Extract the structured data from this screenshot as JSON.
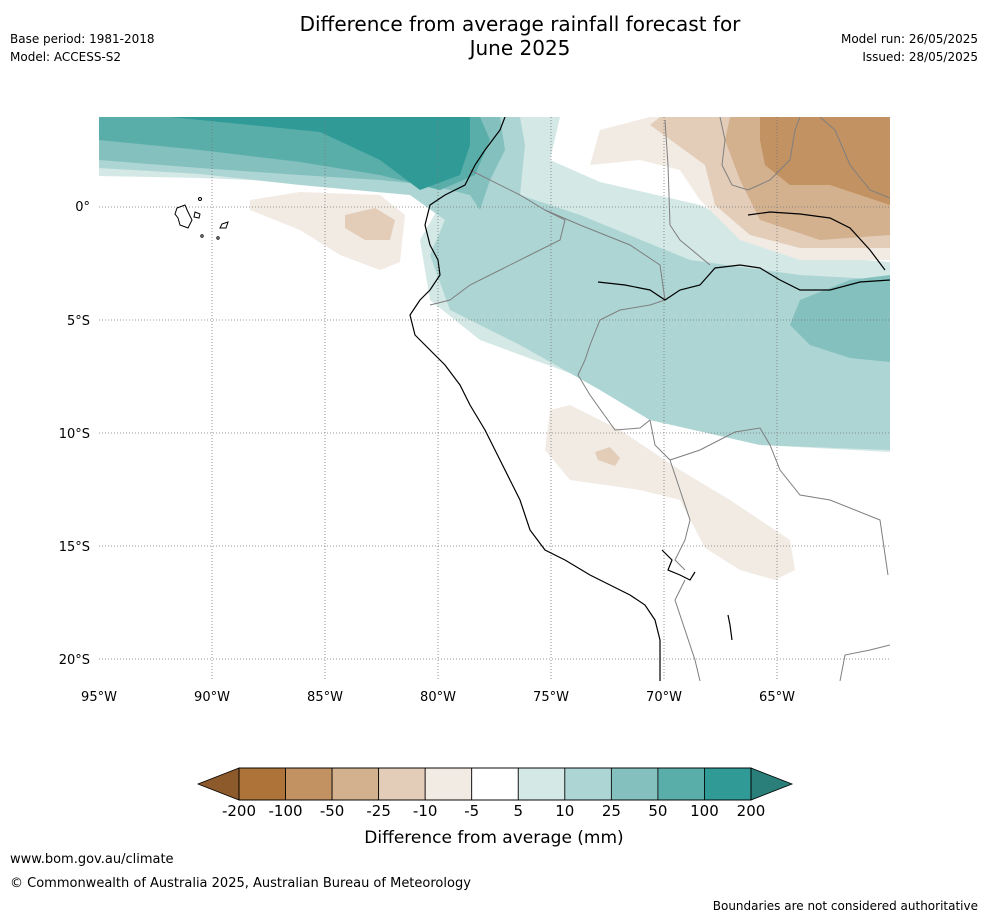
{
  "header": {
    "title_line1": "Difference from average rainfall forecast for",
    "title_line2": "June 2025",
    "base_period": "Base period: 1981-2018",
    "model": "Model: ACCESS-S2",
    "model_run": "Model run: 26/05/2025",
    "issued": "Issued: 28/05/2025"
  },
  "map": {
    "lon_ticks": [
      "95°W",
      "90°W",
      "85°W",
      "80°W",
      "75°W",
      "70°W",
      "65°W"
    ],
    "lat_ticks": [
      "0°",
      "5°S",
      "10°S",
      "15°S",
      "20°S"
    ],
    "lon_range": [
      -95,
      -60
    ],
    "lat_range": [
      -21,
      4
    ]
  },
  "colorbar": {
    "title": "Difference from average (mm)",
    "labels": [
      "-200",
      "-100",
      "-50",
      "-25",
      "-10",
      "-5",
      "5",
      "10",
      "25",
      "50",
      "100",
      "200"
    ],
    "colors": [
      "#ad7339",
      "#c29262",
      "#d3b08e",
      "#e3cdb9",
      "#f1ebe4",
      "#ffffff",
      "#d4e8e6",
      "#acd5d4",
      "#83c0be",
      "#5aaeaa",
      "#309b96"
    ],
    "under_color": "#8c5a2b",
    "over_color": "#2a7f7b"
  },
  "footer": {
    "url": "www.bom.gov.au/climate",
    "copyright": "© Commonwealth of Australia 2025, Australian Bureau of Meteorology",
    "note": "Boundaries are not considered authoritative"
  }
}
